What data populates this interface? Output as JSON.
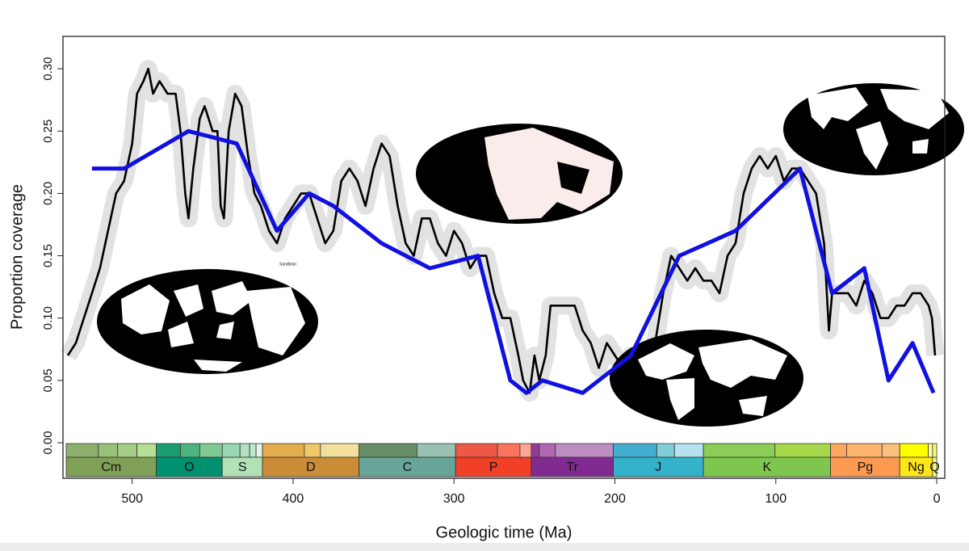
{
  "chart_data": {
    "type": "line",
    "xlabel": "Geologic time (Ma)",
    "ylabel": "Proportion coverage",
    "xlim": [
      543,
      -5
    ],
    "ylim": [
      -0.0285,
      0.326
    ],
    "xticks": [
      500,
      400,
      300,
      200,
      100,
      0
    ],
    "yticks": [
      {
        "value": 0,
        "label": "0.00"
      },
      {
        "value": 0.05,
        "label": "0.05"
      },
      {
        "value": 0.1,
        "label": "0.10"
      },
      {
        "value": 0.15,
        "label": "0.15"
      },
      {
        "value": 0.2,
        "label": "0.20"
      },
      {
        "value": 0.25,
        "label": "0.25"
      },
      {
        "value": 0.3,
        "label": "0.30"
      }
    ],
    "band_color": "#e2e2e2",
    "series": [
      {
        "color": "#000000",
        "x": [
          540,
          535,
          530,
          525,
          520,
          515,
          510,
          505,
          500,
          497,
          493,
          490,
          487,
          483,
          478,
          473,
          470,
          467,
          465,
          462,
          458,
          455,
          450,
          447,
          445,
          443,
          440,
          436,
          432,
          428,
          424,
          420,
          415,
          410,
          405,
          400,
          395,
          390,
          385,
          380,
          375,
          370,
          365,
          360,
          355,
          350,
          345,
          340,
          335,
          330,
          325,
          320,
          315,
          310,
          305,
          300,
          295,
          290,
          285,
          280,
          275,
          270,
          265,
          260,
          257,
          253,
          250,
          247,
          243,
          240,
          235,
          230,
          225,
          220,
          215,
          210,
          205,
          200,
          195,
          190,
          185,
          180,
          175,
          170,
          165,
          160,
          155,
          150,
          145,
          140,
          135,
          130,
          125,
          120,
          115,
          110,
          105,
          100,
          95,
          90,
          85,
          80,
          75,
          70,
          67,
          65,
          60,
          55,
          50,
          45,
          40,
          35,
          30,
          25,
          20,
          15,
          10,
          5,
          3,
          1
        ],
        "values": [
          0.07,
          0.08,
          0.1,
          0.12,
          0.14,
          0.17,
          0.2,
          0.21,
          0.24,
          0.28,
          0.29,
          0.3,
          0.28,
          0.29,
          0.28,
          0.28,
          0.25,
          0.2,
          0.18,
          0.22,
          0.26,
          0.27,
          0.25,
          0.25,
          0.19,
          0.18,
          0.25,
          0.28,
          0.27,
          0.23,
          0.2,
          0.19,
          0.17,
          0.16,
          0.18,
          0.19,
          0.2,
          0.2,
          0.18,
          0.16,
          0.17,
          0.21,
          0.22,
          0.21,
          0.19,
          0.22,
          0.24,
          0.23,
          0.19,
          0.16,
          0.15,
          0.18,
          0.18,
          0.16,
          0.15,
          0.17,
          0.16,
          0.14,
          0.15,
          0.15,
          0.12,
          0.1,
          0.1,
          0.07,
          0.05,
          0.04,
          0.07,
          0.05,
          0.07,
          0.11,
          0.11,
          0.11,
          0.11,
          0.09,
          0.08,
          0.06,
          0.08,
          0.07,
          0.06,
          0.07,
          0.06,
          0.06,
          0.08,
          0.12,
          0.15,
          0.14,
          0.13,
          0.14,
          0.13,
          0.13,
          0.12,
          0.15,
          0.16,
          0.2,
          0.22,
          0.23,
          0.22,
          0.23,
          0.21,
          0.22,
          0.22,
          0.21,
          0.2,
          0.16,
          0.09,
          0.12,
          0.12,
          0.12,
          0.11,
          0.13,
          0.12,
          0.1,
          0.1,
          0.11,
          0.11,
          0.12,
          0.12,
          0.11,
          0.1,
          0.07
        ]
      },
      {
        "color": "#1010e0",
        "x": [
          525,
          505,
          465,
          435,
          410,
          390,
          375,
          345,
          315,
          285,
          265,
          255,
          245,
          220,
          190,
          160,
          125,
          85,
          65,
          45,
          30,
          15,
          2
        ],
        "values": [
          0.22,
          0.22,
          0.25,
          0.24,
          0.17,
          0.2,
          0.19,
          0.16,
          0.14,
          0.15,
          0.05,
          0.04,
          0.05,
          0.04,
          0.07,
          0.15,
          0.17,
          0.22,
          0.12,
          0.14,
          0.05,
          0.08,
          0.04
        ]
      }
    ],
    "periods": {
      "names": [
        "Cm",
        "O",
        "S",
        "D",
        "C",
        "P",
        "Tr",
        "J",
        "K",
        "Pg",
        "Ng",
        "Q"
      ],
      "starts": [
        541,
        485,
        444,
        419,
        359,
        299,
        252,
        201,
        145,
        66,
        23,
        2.6
      ],
      "ends": [
        485,
        444,
        419,
        359,
        299,
        252,
        201,
        145,
        66,
        23,
        2.6,
        0
      ],
      "colors": [
        "#7fa056",
        "#009270",
        "#b3e1b6",
        "#cb8c37",
        "#67a599",
        "#f04028",
        "#812b92",
        "#34b2c9",
        "#7fc64e",
        "#fd9a52",
        "#ffe619",
        "#f9f97f"
      ]
    },
    "epochs": {
      "starts": [
        541,
        521,
        509,
        497,
        485,
        470,
        458,
        444,
        433,
        427,
        423,
        419,
        393,
        383,
        359,
        323,
        299,
        273,
        259,
        252,
        247,
        237,
        201,
        174,
        163,
        145,
        100.5,
        66,
        56,
        34,
        23,
        5.3,
        2.6
      ],
      "ends": [
        521,
        509,
        497,
        485,
        470,
        458,
        444,
        433,
        427,
        423,
        419,
        393,
        383,
        359,
        323,
        299,
        273,
        259,
        252,
        247,
        237,
        201,
        174,
        163,
        145,
        100.5,
        66,
        56,
        34,
        23,
        5.3,
        2.6,
        0
      ],
      "colors": [
        "#8cb06c",
        "#99c078",
        "#a6cf86",
        "#b3e095",
        "#1a9d6f",
        "#4db47e",
        "#7fca93",
        "#99d7b3",
        "#b3e1c2",
        "#bfe6cf",
        "#e6f5e1",
        "#e5ac4d",
        "#f1c868",
        "#f1e19d",
        "#678f66",
        "#99c2b5",
        "#ef5845",
        "#fb745c",
        "#fba794",
        "#983999",
        "#b168b1",
        "#bd8cc3",
        "#42aed0",
        "#80cfd8",
        "#b3e3ee",
        "#8ccd57",
        "#a6d84a",
        "#fda75f",
        "#fdb46c",
        "#fdc07a",
        "#ffff00",
        "#ffff99",
        "#f9f97f"
      ]
    },
    "annotation": "Sandbian"
  }
}
